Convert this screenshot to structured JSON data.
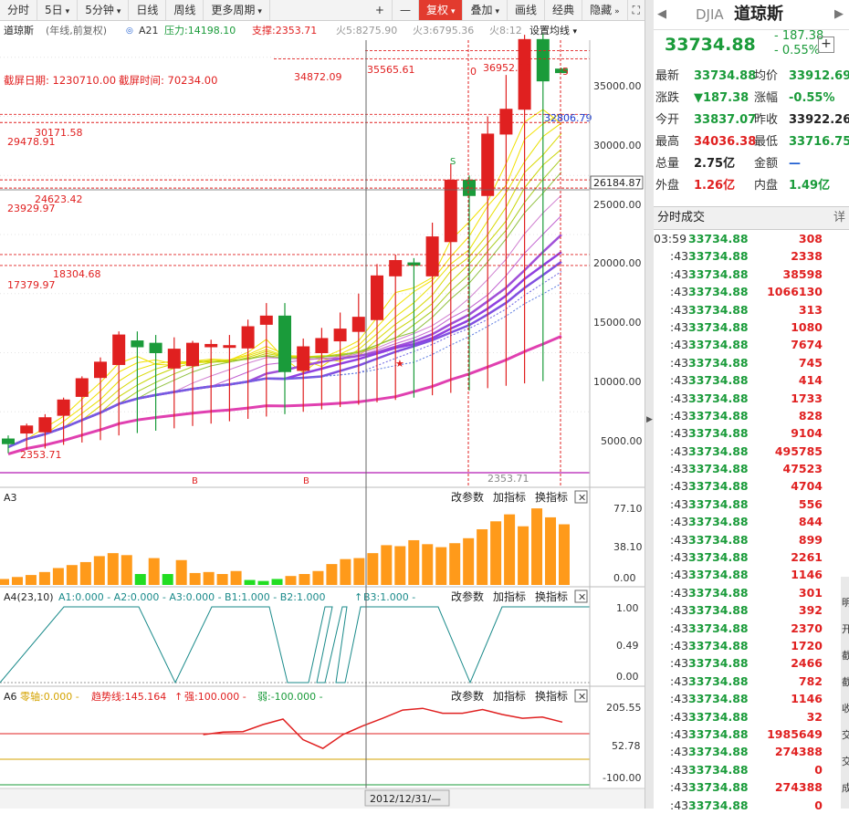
{
  "toolbar": {
    "tabs": [
      "分时",
      "5日",
      "5分钟",
      "日线",
      "周线",
      "更多周期"
    ],
    "tools": [
      "+",
      "—",
      "复权",
      "叠加",
      "画线",
      "经典",
      "隐藏"
    ]
  },
  "chart_info": {
    "name": "道琼斯",
    "mode": "(年线,前复权)",
    "indicator": "A21",
    "resistance": "压力:14198.10",
    "support": "支撑:2353.71",
    "huo5": "火5:8275.90",
    "huo3": "火3:6795.36",
    "huo8": "火8:12",
    "settings": "设置均线"
  },
  "capture": {
    "date_label": "截屏日期: 1230710.00",
    "time_label": "截屏时间: 70234.00"
  },
  "price_axis": [
    "35000.00",
    "30000.00",
    "25000.00",
    "20000.00",
    "15000.00",
    "10000.00",
    "5000.00"
  ],
  "current_axis_price": "26184.87",
  "level_labels": [
    "34872.09",
    "35565.61",
    "36952.68",
    "32806.79",
    "30171.58",
    "29478.91",
    "24623.42",
    "23929.97",
    "18304.68",
    "17379.97",
    "2353.71",
    "2353.71"
  ],
  "markers": {
    "b1": "B",
    "b2": "B",
    "s": "S",
    "zero": "0",
    "five": "5"
  },
  "chart_data": {
    "type": "candlestick",
    "title": "道琼斯",
    "ylabel": "",
    "ylim": [
      0,
      40000
    ],
    "candles": [
      {
        "open": 2700,
        "close": 2300,
        "high": 3000,
        "low": 1500
      },
      {
        "open": 3200,
        "close": 3800,
        "high": 4000,
        "low": 1800
      },
      {
        "open": 3300,
        "close": 4500,
        "high": 4800,
        "low": 1900
      },
      {
        "open": 4700,
        "close": 6000,
        "high": 6200,
        "low": 2200
      },
      {
        "open": 6300,
        "close": 7800,
        "high": 8000,
        "low": 2400
      },
      {
        "open": 7900,
        "close": 9200,
        "high": 9600,
        "low": 2600
      },
      {
        "open": 9000,
        "close": 11500,
        "high": 11800,
        "low": 3000
      },
      {
        "open": 11000,
        "close": 10500,
        "high": 11800,
        "low": 3200
      },
      {
        "open": 10800,
        "close": 10000,
        "high": 11500,
        "low": 3400
      },
      {
        "open": 8700,
        "close": 10300,
        "high": 11300,
        "low": 3600
      },
      {
        "open": 8900,
        "close": 10800,
        "high": 11000,
        "low": 3800
      },
      {
        "open": 10500,
        "close": 10700,
        "high": 11100,
        "low": 4000
      },
      {
        "open": 10500,
        "close": 10600,
        "high": 11500,
        "low": 4200
      },
      {
        "open": 10400,
        "close": 12200,
        "high": 12800,
        "low": 4400
      },
      {
        "open": 12400,
        "close": 13100,
        "high": 14200,
        "low": 4600
      },
      {
        "open": 13100,
        "close": 8400,
        "high": 14200,
        "low": 4800
      },
      {
        "open": 8500,
        "close": 10500,
        "high": 11200,
        "low": 5000
      },
      {
        "open": 10000,
        "close": 11200,
        "high": 12100,
        "low": 5200
      },
      {
        "open": 11000,
        "close": 12000,
        "high": 13400,
        "low": 5400
      },
      {
        "open": 11800,
        "close": 13000,
        "high": 15000,
        "low": 5600
      },
      {
        "open": 12800,
        "close": 16500,
        "high": 17500,
        "low": 5800
      },
      {
        "open": 16500,
        "close": 17800,
        "high": 18300,
        "low": 6000
      },
      {
        "open": 17600,
        "close": 17400,
        "high": 18000,
        "low": 6200
      },
      {
        "open": 16500,
        "close": 19800,
        "high": 21000,
        "low": 6400
      },
      {
        "open": 19400,
        "close": 24600,
        "high": 26000,
        "low": 6600
      },
      {
        "open": 24600,
        "close": 23300,
        "high": 25000,
        "low": 6800
      },
      {
        "open": 23300,
        "close": 28500,
        "high": 30000,
        "low": 7000
      },
      {
        "open": 28500,
        "close": 30600,
        "high": 33500,
        "low": 7200
      },
      {
        "open": 30600,
        "close": 36500,
        "high": 36900,
        "low": 7400
      },
      {
        "open": 36500,
        "close": 33000,
        "high": 37000,
        "low": 7600
      },
      {
        "open": 34000,
        "close": 33700,
        "high": 34100,
        "low": 33700
      }
    ]
  },
  "panel_a3": {
    "label": "A3",
    "buttons": [
      "改参数",
      "加指标",
      "换指标"
    ],
    "axis": [
      "77.10",
      "38.10",
      "0.00"
    ],
    "values": [
      6,
      8,
      10,
      13,
      17,
      20,
      23,
      29,
      32,
      30,
      11,
      27,
      11,
      25,
      12,
      13,
      11,
      14,
      5,
      4,
      6,
      9,
      11,
      14,
      21,
      26,
      27,
      32,
      40,
      39,
      45,
      41,
      38,
      42,
      47,
      56,
      64,
      71,
      59,
      77,
      68,
      61
    ]
  },
  "panel_a4": {
    "label": "A4(23,10)",
    "legend": "A1:0.000 - A2:0.000 - A3:0.000 - B1:1.000 - B2:1.000",
    "b3": "B3:1.000 -",
    "buttons": [
      "改参数",
      "加指标",
      "换指标"
    ],
    "axis": [
      "1.00",
      "0.49",
      "0.00"
    ]
  },
  "panel_a6": {
    "label": "A6",
    "legend": [
      "零轴:0.000 -",
      "趋势线:145.164",
      "强:100.000 -",
      "弱:-100.000 -"
    ],
    "buttons": [
      "改参数",
      "加指标",
      "换指标"
    ],
    "axis": [
      "205.55",
      "52.78",
      "-100.00"
    ],
    "trend": [
      null,
      null,
      null,
      null,
      null,
      null,
      null,
      null,
      null,
      null,
      100,
      110,
      112,
      140,
      162,
      80,
      45,
      100,
      135,
      165,
      198,
      205,
      185,
      185,
      200,
      180,
      165,
      170,
      150
    ]
  },
  "cursor_date": "2012/12/31/—",
  "right_panel": {
    "code": "DJIA",
    "name": "道琼斯",
    "price": "33734.88",
    "change": "- 187.38",
    "change_pct": "- 0.55%",
    "quotes": [
      {
        "k1": "最新",
        "v1": "33734.88",
        "c1": "#1a9b3a",
        "k2": "均价",
        "v2": "33912.69",
        "c2": "#1a9b3a"
      },
      {
        "k1": "涨跌",
        "v1": "▼187.38",
        "c1": "#1a9b3a",
        "k2": "涨幅",
        "v2": "-0.55%",
        "c2": "#1a9b3a"
      },
      {
        "k1": "今开",
        "v1": "33837.07",
        "c1": "#1a9b3a",
        "k2": "昨收",
        "v2": "33922.26",
        "c2": "#222222"
      },
      {
        "k1": "最高",
        "v1": "34036.38",
        "c1": "#e02020",
        "k2": "最低",
        "v2": "33716.75",
        "c2": "#1a9b3a"
      },
      {
        "k1": "总量",
        "v1": "2.75亿",
        "c1": "#222222",
        "k2": "金额",
        "v2": "—",
        "c2": "#1a5bd0"
      },
      {
        "k1": "外盘",
        "v1": "1.26亿",
        "c1": "#e02020",
        "k2": "内盘",
        "v2": "1.49亿",
        "c2": "#1a9b3a"
      }
    ],
    "trades_title": "分时成交",
    "trades_detail": "详",
    "trades": [
      {
        "t": "03:59",
        "p": "33734.88",
        "v": "308"
      },
      {
        "t": ":43",
        "p": "33734.88",
        "v": "2338"
      },
      {
        "t": ":43",
        "p": "33734.88",
        "v": "38598"
      },
      {
        "t": ":43",
        "p": "33734.88",
        "v": "1066130"
      },
      {
        "t": ":43",
        "p": "33734.88",
        "v": "313"
      },
      {
        "t": ":43",
        "p": "33734.88",
        "v": "1080"
      },
      {
        "t": ":43",
        "p": "33734.88",
        "v": "7674"
      },
      {
        "t": ":43",
        "p": "33734.88",
        "v": "745"
      },
      {
        "t": ":43",
        "p": "33734.88",
        "v": "414"
      },
      {
        "t": ":43",
        "p": "33734.88",
        "v": "1733"
      },
      {
        "t": ":43",
        "p": "33734.88",
        "v": "828"
      },
      {
        "t": ":43",
        "p": "33734.88",
        "v": "9104"
      },
      {
        "t": ":43",
        "p": "33734.88",
        "v": "495785"
      },
      {
        "t": ":43",
        "p": "33734.88",
        "v": "47523"
      },
      {
        "t": ":43",
        "p": "33734.88",
        "v": "4704"
      },
      {
        "t": ":43",
        "p": "33734.88",
        "v": "556"
      },
      {
        "t": ":43",
        "p": "33734.88",
        "v": "844"
      },
      {
        "t": ":43",
        "p": "33734.88",
        "v": "899"
      },
      {
        "t": ":43",
        "p": "33734.88",
        "v": "2261"
      },
      {
        "t": ":43",
        "p": "33734.88",
        "v": "1146"
      },
      {
        "t": ":43",
        "p": "33734.88",
        "v": "301"
      },
      {
        "t": ":43",
        "p": "33734.88",
        "v": "392"
      },
      {
        "t": ":43",
        "p": "33734.88",
        "v": "2370"
      },
      {
        "t": ":43",
        "p": "33734.88",
        "v": "1720"
      },
      {
        "t": ":43",
        "p": "33734.88",
        "v": "2466"
      },
      {
        "t": ":43",
        "p": "33734.88",
        "v": "782"
      },
      {
        "t": ":43",
        "p": "33734.88",
        "v": "1146"
      },
      {
        "t": ":43",
        "p": "33734.88",
        "v": "32"
      },
      {
        "t": ":43",
        "p": "33734.88",
        "v": "1985649"
      },
      {
        "t": ":43",
        "p": "33734.88",
        "v": "274388"
      },
      {
        "t": ":43",
        "p": "33734.88",
        "v": "0"
      },
      {
        "t": ":43",
        "p": "33734.88",
        "v": "274388"
      },
      {
        "t": ":43",
        "p": "33734.88",
        "v": "0"
      }
    ],
    "side_glyphs": [
      "明",
      "开",
      "截",
      "截",
      "收",
      "交",
      "交",
      "成"
    ]
  },
  "colors": {
    "up": "#e02020",
    "down": "#1a9b3a",
    "panel_bar": "#ff9a1a",
    "accent": "#e23b2e"
  }
}
